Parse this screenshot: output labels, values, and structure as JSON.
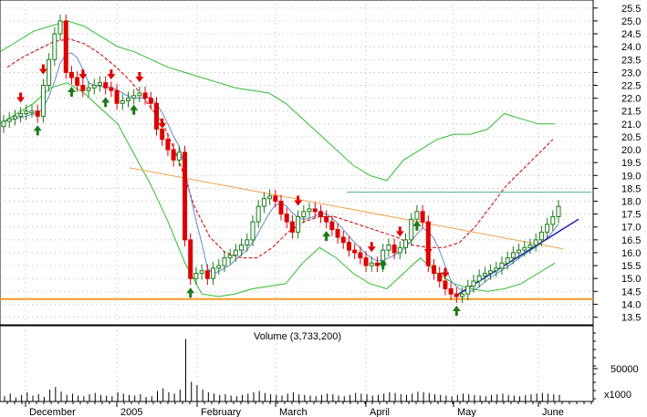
{
  "chart_data": {
    "type": "candlestick",
    "price_axis": {
      "ticks": [
        "25.5",
        "25.0",
        "24.5",
        "24.0",
        "23.5",
        "23.0",
        "22.5",
        "22.0",
        "21.5",
        "21.0",
        "20.5",
        "20.0",
        "19.5",
        "19.0",
        "18.5",
        "18.0",
        "17.5",
        "17.0",
        "16.5",
        "16.0",
        "15.5",
        "15.0",
        "14.5",
        "14.0",
        "13.5"
      ],
      "ylim": [
        13.2,
        25.6
      ]
    },
    "x_axis": {
      "labels": [
        "December",
        "2005",
        "February",
        "March",
        "April",
        "May",
        "June"
      ]
    },
    "volume_panel": {
      "title": "Volume (3,733,200)",
      "tick_label": "50000",
      "unit_label": "x1000",
      "ylim": [
        0,
        100000
      ]
    },
    "trendlines": {
      "support_price": 14.2,
      "resistance_price": 18.35,
      "falling_line_start": 19.3,
      "falling_line_end": 16.15,
      "rising_line_start": 14.3,
      "rising_line_end": 17.3
    },
    "series": {
      "close": [
        21.1,
        21.2,
        21.3,
        21.4,
        21.5,
        21.5,
        21.3,
        22.5,
        23.5,
        24.5,
        25.0,
        23.0,
        22.8,
        22.5,
        22.3,
        22.4,
        22.5,
        22.6,
        22.4,
        22.3,
        21.8,
        21.9,
        22.0,
        22.1,
        22.2,
        22.0,
        21.8,
        20.8,
        20.4,
        20.0,
        19.6,
        19.9,
        16.5,
        15.0,
        15.2,
        15.3,
        15.0,
        15.4,
        15.5,
        15.8,
        15.9,
        16.1,
        16.3,
        16.5,
        17.2,
        17.8,
        18.1,
        18.2,
        18.0,
        17.5,
        17.2,
        16.8,
        17.4,
        17.6,
        17.7,
        17.6,
        17.4,
        17.2,
        16.9,
        16.6,
        16.4,
        16.1,
        16.0,
        15.8,
        15.5,
        15.6,
        15.5,
        16.1,
        16.3,
        16.0,
        16.2,
        16.5,
        17.3,
        17.6,
        17.2,
        15.5,
        15.2,
        14.9,
        14.6,
        14.4,
        14.3,
        14.4,
        14.7,
        14.9,
        15.1,
        15.2,
        15.3,
        15.4,
        15.6,
        15.8,
        16.0,
        16.1,
        16.2,
        16.3,
        16.5,
        16.8,
        17.1,
        17.4,
        17.8
      ],
      "bollinger_upper": [
        23.8,
        24.2,
        24.6,
        24.8,
        25.0,
        24.8,
        24.4,
        24.0,
        23.8,
        23.5,
        23.2,
        23.0,
        22.8,
        22.6,
        22.4,
        22.3,
        22.2,
        21.8,
        21.2,
        20.6,
        20.0,
        19.4,
        19.0,
        18.8,
        19.6,
        20.0,
        20.4,
        20.6,
        20.6,
        20.8,
        21.4,
        21.2,
        21.0,
        21.0
      ],
      "bollinger_lower": [
        21.0,
        21.4,
        21.8,
        22.4,
        22.6,
        22.2,
        21.6,
        21.0,
        19.8,
        18.6,
        17.2,
        15.6,
        14.4,
        14.3,
        14.4,
        14.6,
        14.7,
        14.8,
        15.6,
        16.2,
        15.8,
        15.2,
        14.8,
        14.6,
        15.2,
        15.8,
        15.2,
        14.8,
        14.6,
        14.5,
        14.6,
        14.8,
        15.2,
        15.6
      ],
      "moving_average": [
        23.2,
        23.6,
        23.9,
        24.2,
        24.3,
        24.1,
        23.7,
        23.2,
        22.6,
        21.8,
        21.0,
        19.6,
        17.8,
        16.6,
        16.0,
        15.8,
        15.8,
        16.2,
        16.8,
        17.2,
        17.4,
        17.4,
        17.2,
        17.0,
        16.8,
        16.6,
        16.3,
        16.2,
        16.2,
        16.4,
        17.0,
        17.8,
        18.6,
        19.2,
        19.8,
        20.4
      ]
    },
    "volume": [
      8,
      12,
      6,
      10,
      14,
      9,
      11,
      7,
      18,
      22,
      15,
      10,
      12,
      9,
      8,
      11,
      13,
      10,
      9,
      8,
      14,
      12,
      10,
      9,
      11,
      7,
      8,
      16,
      20,
      14,
      12,
      18,
      95,
      30,
      25,
      18,
      14,
      12,
      10,
      11,
      9,
      8,
      10,
      12,
      14,
      16,
      13,
      11,
      10,
      9,
      12,
      14,
      11,
      10,
      9,
      8,
      10,
      12,
      11,
      9,
      8,
      10,
      13,
      12,
      11,
      9,
      10,
      12,
      14,
      13,
      11,
      10,
      12,
      15,
      14,
      13,
      11,
      10,
      9,
      8,
      10,
      12,
      11,
      10,
      9,
      8,
      10,
      11,
      12,
      10,
      9,
      8,
      10,
      11,
      12,
      13,
      12,
      11,
      10
    ],
    "signals_down": [
      3,
      7,
      14,
      19,
      24,
      28,
      52,
      65,
      70,
      75,
      78
    ],
    "signals_up": [
      6,
      12,
      18,
      23,
      33,
      57,
      67,
      73,
      80
    ]
  },
  "colors": {
    "up": "#1a7a1a",
    "down": "#dd0000",
    "bollinger": "#2ebd2e",
    "moving_average": "#cc0000",
    "falling_line": "#f4a24a",
    "support_line": "#f39a28",
    "resistance_line": "#4cb08a",
    "rising_line": "#1f1fb0",
    "signal_line": "#6688cc",
    "grid": "#9a9a9a"
  }
}
